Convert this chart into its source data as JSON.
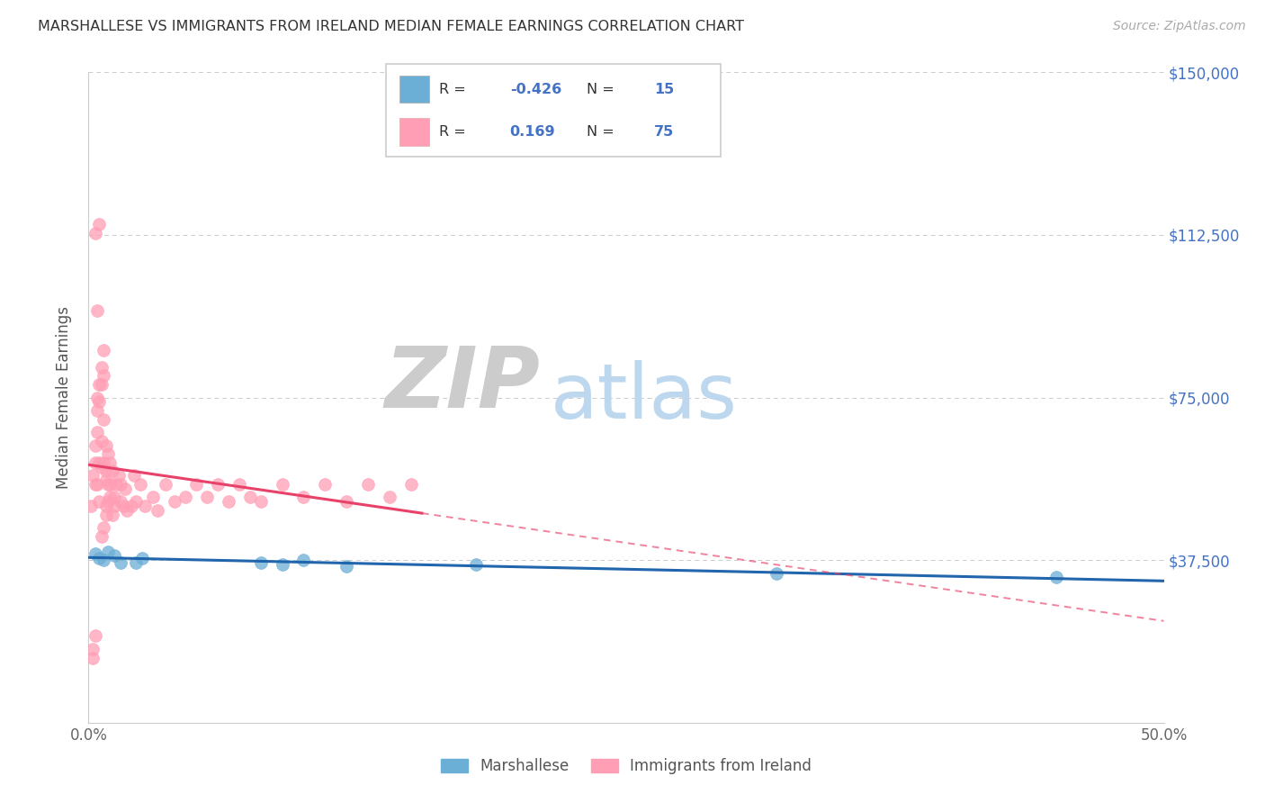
{
  "title": "MARSHALLESE VS IMMIGRANTS FROM IRELAND MEDIAN FEMALE EARNINGS CORRELATION CHART",
  "source": "Source: ZipAtlas.com",
  "ylabel": "Median Female Earnings",
  "xlim": [
    0,
    0.5
  ],
  "ylim": [
    0,
    150000
  ],
  "blue_color": "#6BAED6",
  "pink_color": "#FF9EB5",
  "blue_line_color": "#2166AC",
  "pink_line_color": "#E8426A",
  "right_label_color": "#4472C4",
  "watermark_zip_color": "#CCCCCC",
  "watermark_atlas_color": "#BDD7EE",
  "legend_R_blue": "-0.426",
  "legend_N_blue": "15",
  "legend_R_pink": "0.169",
  "legend_N_pink": "75",
  "legend_label_blue": "Marshallese",
  "legend_label_pink": "Immigrants from Ireland",
  "blue_x": [
    0.003,
    0.005,
    0.007,
    0.009,
    0.012,
    0.015,
    0.022,
    0.025,
    0.09,
    0.1,
    0.12,
    0.18,
    0.32,
    0.45,
    0.08
  ],
  "blue_y": [
    39000,
    38000,
    37500,
    39500,
    38500,
    37000,
    37000,
    38000,
    36500,
    37500,
    36000,
    36500,
    34500,
    33500,
    37000
  ],
  "pink_x": [
    0.001,
    0.002,
    0.002,
    0.003,
    0.003,
    0.003,
    0.004,
    0.004,
    0.004,
    0.005,
    0.005,
    0.005,
    0.006,
    0.006,
    0.006,
    0.007,
    0.007,
    0.007,
    0.008,
    0.008,
    0.008,
    0.009,
    0.009,
    0.009,
    0.01,
    0.01,
    0.01,
    0.011,
    0.011,
    0.012,
    0.012,
    0.013,
    0.014,
    0.015,
    0.015,
    0.016,
    0.017,
    0.018,
    0.02,
    0.021,
    0.022,
    0.024,
    0.026,
    0.03,
    0.032,
    0.036,
    0.04,
    0.045,
    0.05,
    0.055,
    0.06,
    0.065,
    0.07,
    0.075,
    0.08,
    0.09,
    0.1,
    0.11,
    0.12,
    0.13,
    0.14,
    0.15,
    0.002,
    0.003,
    0.004,
    0.005,
    0.006,
    0.007,
    0.008,
    0.003,
    0.004,
    0.005,
    0.006,
    0.007,
    0.008
  ],
  "pink_y": [
    50000,
    15000,
    57000,
    60000,
    64000,
    55000,
    55000,
    67000,
    72000,
    60000,
    74000,
    51000,
    65000,
    59000,
    78000,
    70000,
    80000,
    60000,
    56000,
    64000,
    58000,
    51000,
    55000,
    62000,
    52000,
    60000,
    55000,
    48000,
    58000,
    52000,
    50000,
    55000,
    57000,
    51000,
    55000,
    50000,
    54000,
    49000,
    50000,
    57000,
    51000,
    55000,
    50000,
    52000,
    49000,
    55000,
    51000,
    52000,
    55000,
    52000,
    55000,
    51000,
    55000,
    52000,
    51000,
    55000,
    52000,
    55000,
    51000,
    55000,
    52000,
    55000,
    17000,
    20000,
    75000,
    78000,
    43000,
    45000,
    48000,
    113000,
    95000,
    115000,
    82000,
    86000,
    50000
  ]
}
